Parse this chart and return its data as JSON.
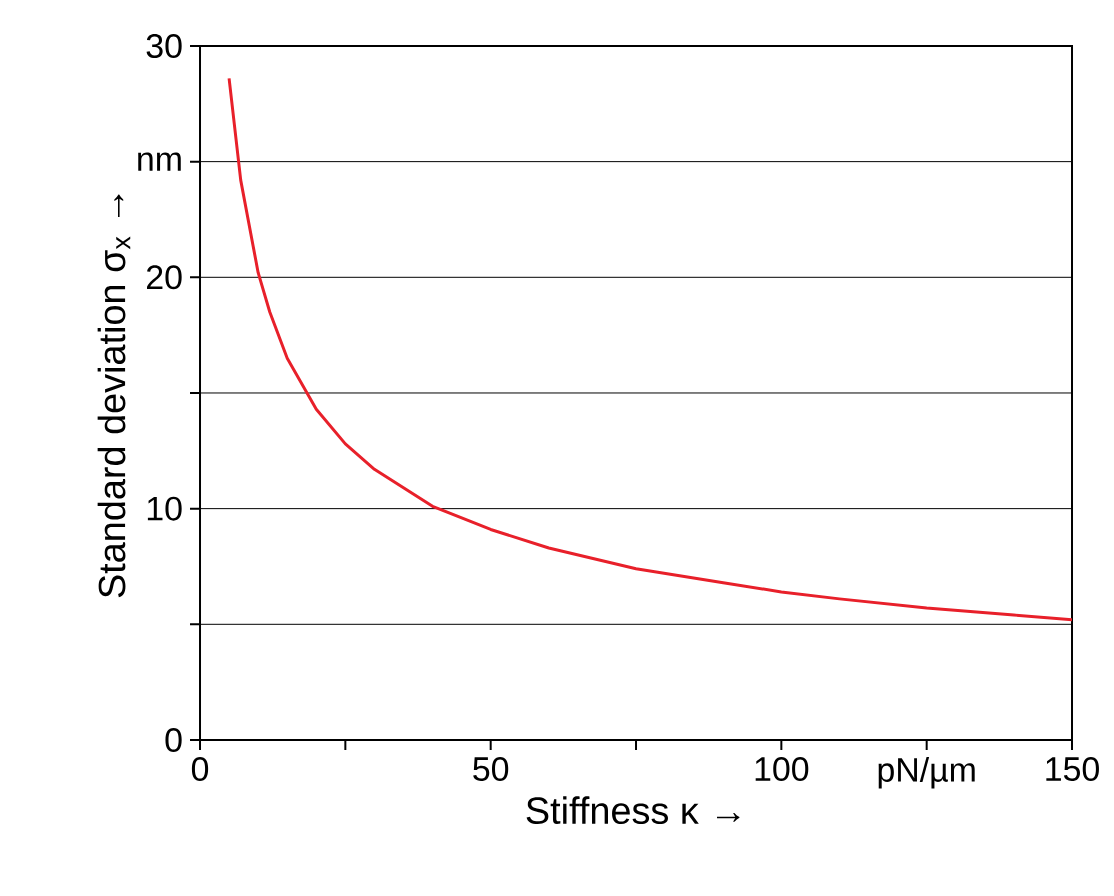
{
  "chart_data": {
    "type": "line",
    "xlabel": "Stiffness κ →",
    "ylabel": "Standard deviation σ$_{x}$ →",
    "x": [
      5,
      7,
      10,
      12,
      15,
      20,
      25,
      30,
      40,
      50,
      60,
      75,
      90,
      100,
      110,
      125,
      140,
      150
    ],
    "series": [
      {
        "color": "#e8202a",
        "values": [
          28.6,
          24.2,
          20.2,
          18.5,
          16.5,
          14.3,
          12.8,
          11.7,
          10.1,
          9.1,
          8.3,
          7.4,
          6.8,
          6.4,
          6.1,
          5.7,
          5.4,
          5.2
        ]
      }
    ],
    "xlim": [
      0,
      150
    ],
    "ylim": [
      0,
      30
    ],
    "xticks": [
      0,
      {
        "value": 25,
        "label": null
      },
      50,
      {
        "value": 75,
        "label": null
      },
      100,
      {
        "value": 125,
        "label": "pN/µm"
      },
      150
    ],
    "yticks": [
      0,
      {
        "value": 5,
        "label": null
      },
      10,
      {
        "value": 15,
        "label": null
      },
      20,
      {
        "value": 25,
        "label": "nm"
      },
      30
    ],
    "grid": "y",
    "marker": "none",
    "line_style": "solid"
  }
}
